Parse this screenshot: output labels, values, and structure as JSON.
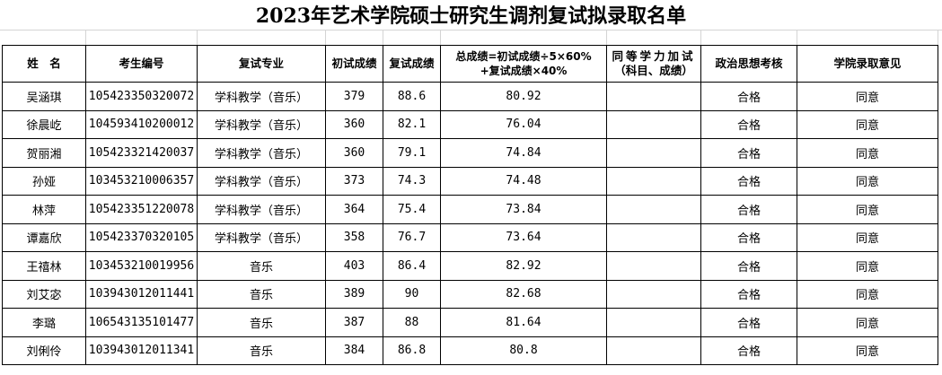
{
  "title": "2023年艺术学院硕士研究生调剂复试拟录取名单",
  "headers": [
    "姓　名",
    "考生编号",
    "复试专业",
    "初试成绩",
    "复试成绩",
    "总成绩=初试成绩÷5×60%+复试成绩×40%",
    "同等学力加试（科目、成绩）",
    "政治思想考核",
    "学院录取意见"
  ],
  "rows": [
    [
      "吴涵琪",
      "105423350320072",
      "学科教学（音乐）",
      "379",
      "88.6",
      "80.92",
      "",
      "合格",
      "同意"
    ],
    [
      "徐晨屹",
      "104593410200012",
      "学科教学（音乐）",
      "360",
      "82.1",
      "76.04",
      "",
      "合格",
      "同意"
    ],
    [
      "贺丽湘",
      "105423321420037",
      "学科教学（音乐）",
      "360",
      "79.1",
      "74.84",
      "",
      "合格",
      "同意"
    ],
    [
      "孙娅",
      "103453210006357",
      "学科教学（音乐）",
      "373",
      "74.3",
      "74.48",
      "",
      "合格",
      "同意"
    ],
    [
      "林萍",
      "105423351220078",
      "学科教学（音乐）",
      "364",
      "75.4",
      "73.84",
      "",
      "合格",
      "同意"
    ],
    [
      "谭嘉欣",
      "105423370320105",
      "学科教学（音乐）",
      "358",
      "76.7",
      "73.64",
      "",
      "合格",
      "同意"
    ],
    [
      "王禧林",
      "103453210019956",
      "音乐",
      "403",
      "86.4",
      "82.92",
      "",
      "合格",
      "同意"
    ],
    [
      "刘艾宓",
      "103943012011441",
      "音乐",
      "389",
      "90",
      "82.68",
      "",
      "合格",
      "同意"
    ],
    [
      "李璐",
      "106543135101477",
      "音乐",
      "387",
      "88",
      "81.64",
      "",
      "合格",
      "同意"
    ],
    [
      "刘俐伶",
      "103943012011341",
      "音乐",
      "384",
      "86.8",
      "80.8",
      "",
      "合格",
      "同意"
    ]
  ]
}
